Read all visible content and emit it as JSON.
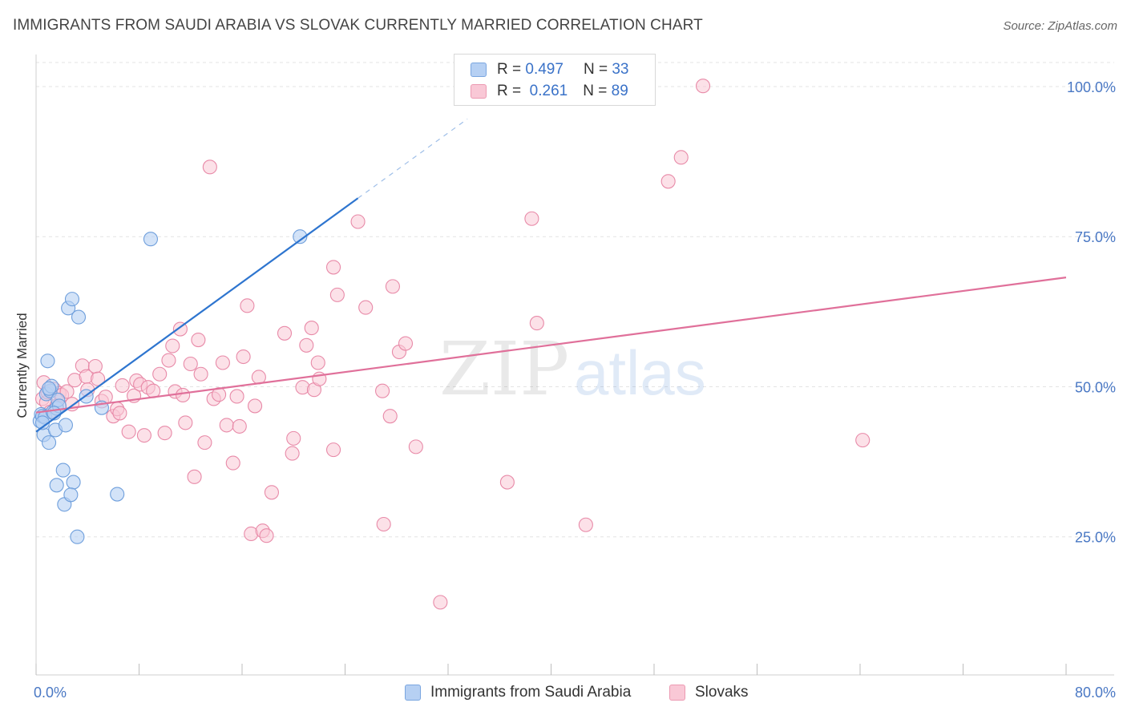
{
  "title": "IMMIGRANTS FROM SAUDI ARABIA VS SLOVAK CURRENTLY MARRIED CORRELATION CHART",
  "source": "Source: ZipAtlas.com",
  "watermark": {
    "zip": "ZIP",
    "atlas": "atlas"
  },
  "legend": {
    "blue": {
      "r_label": "R =",
      "r_value": "0.497",
      "n_label": "N =",
      "n_value": "33"
    },
    "pink": {
      "r_label": "R =",
      "r_value": "0.261",
      "n_label": "N =",
      "n_value": "89"
    }
  },
  "bottom_legend": {
    "blue": "Immigrants from Saudi Arabia",
    "pink": "Slovaks"
  },
  "colors": {
    "blue_fill": "#b6d0f3",
    "blue_stroke": "#6f9fdc",
    "blue_line": "#2e75cf",
    "pink_fill": "#f9c8d6",
    "pink_stroke": "#e88aa8",
    "pink_line": "#e0709a",
    "tick_text": "#4a78c4",
    "grid": "#e3e3e3"
  },
  "chart_data": {
    "type": "scatter",
    "title": "IMMIGRANTS FROM SAUDI ARABIA VS SLOVAK CURRENTLY MARRIED CORRELATION CHART",
    "xlabel": "",
    "ylabel": "Currently Married",
    "xlim": [
      0,
      80
    ],
    "ylim": [
      2,
      104
    ],
    "x_tick_labels": [
      "0.0%",
      "80.0%"
    ],
    "y_ticks": [
      25,
      50,
      75,
      100
    ],
    "y_tick_labels": [
      "25.0%",
      "50.0%",
      "75.0%",
      "100.0%"
    ],
    "series": [
      {
        "name": "Immigrants from Saudi Arabia",
        "color": "blue",
        "trend": {
          "x0": 0,
          "y0": 42.5,
          "x1": 25,
          "y1": 81.4,
          "dashed_to_x": 33.5,
          "dashed_to_y": 94.6
        },
        "points": [
          [
            0.3,
            44.3
          ],
          [
            0.4,
            45.4
          ],
          [
            0.5,
            45.1
          ],
          [
            0.6,
            42.0
          ],
          [
            0.7,
            44.9
          ],
          [
            0.8,
            48.8
          ],
          [
            0.9,
            54.3
          ],
          [
            1.0,
            40.7
          ],
          [
            1.1,
            49.3
          ],
          [
            1.2,
            50.1
          ],
          [
            1.3,
            45.8
          ],
          [
            1.5,
            42.8
          ],
          [
            1.6,
            46.4
          ],
          [
            1.7,
            47.8
          ],
          [
            1.8,
            46.8
          ],
          [
            2.1,
            36.1
          ],
          [
            2.2,
            30.4
          ],
          [
            2.3,
            43.6
          ],
          [
            2.5,
            63.1
          ],
          [
            2.8,
            64.6
          ],
          [
            2.9,
            34.1
          ],
          [
            2.7,
            32.0
          ],
          [
            3.3,
            61.6
          ],
          [
            1.6,
            33.6
          ],
          [
            3.9,
            48.4
          ],
          [
            5.1,
            46.5
          ],
          [
            6.3,
            32.1
          ],
          [
            8.9,
            74.6
          ],
          [
            20.5,
            75.0
          ],
          [
            3.2,
            25.0
          ],
          [
            0.5,
            44.0
          ],
          [
            1.0,
            49.7
          ],
          [
            1.4,
            45.6
          ]
        ]
      },
      {
        "name": "Slovaks",
        "color": "pink",
        "trend": {
          "x0": 0,
          "y0": 45.7,
          "x1": 80,
          "y1": 68.2
        },
        "points": [
          [
            0.5,
            48.0
          ],
          [
            0.6,
            50.7
          ],
          [
            0.8,
            47.4
          ],
          [
            0.9,
            49.1
          ],
          [
            1.1,
            45.8
          ],
          [
            1.4,
            49.6
          ],
          [
            1.6,
            46.8
          ],
          [
            1.8,
            48.9
          ],
          [
            2.0,
            48.6
          ],
          [
            2.4,
            49.2
          ],
          [
            2.8,
            47.1
          ],
          [
            3.0,
            51.1
          ],
          [
            3.6,
            53.5
          ],
          [
            3.9,
            51.7
          ],
          [
            4.0,
            49.5
          ],
          [
            4.6,
            53.4
          ],
          [
            4.8,
            51.3
          ],
          [
            5.1,
            47.6
          ],
          [
            5.4,
            48.3
          ],
          [
            6.0,
            45.1
          ],
          [
            6.3,
            46.3
          ],
          [
            6.5,
            45.6
          ],
          [
            6.7,
            50.2
          ],
          [
            7.2,
            42.5
          ],
          [
            7.6,
            48.5
          ],
          [
            7.8,
            51.0
          ],
          [
            8.1,
            50.4
          ],
          [
            8.4,
            41.9
          ],
          [
            8.7,
            49.9
          ],
          [
            9.1,
            49.3
          ],
          [
            9.6,
            52.1
          ],
          [
            10.0,
            42.3
          ],
          [
            10.3,
            54.4
          ],
          [
            10.6,
            56.8
          ],
          [
            10.8,
            49.2
          ],
          [
            11.2,
            59.6
          ],
          [
            11.4,
            48.6
          ],
          [
            11.6,
            44.0
          ],
          [
            12.0,
            53.8
          ],
          [
            12.3,
            35.0
          ],
          [
            12.6,
            57.8
          ],
          [
            12.8,
            52.1
          ],
          [
            13.1,
            40.7
          ],
          [
            13.5,
            86.6
          ],
          [
            13.8,
            48.0
          ],
          [
            14.2,
            48.7
          ],
          [
            14.5,
            54.0
          ],
          [
            14.8,
            43.6
          ],
          [
            15.3,
            37.3
          ],
          [
            15.6,
            48.4
          ],
          [
            15.8,
            43.4
          ],
          [
            16.1,
            55.0
          ],
          [
            16.4,
            63.5
          ],
          [
            16.7,
            25.5
          ],
          [
            17.0,
            46.8
          ],
          [
            17.3,
            51.6
          ],
          [
            17.6,
            26.0
          ],
          [
            17.9,
            25.2
          ],
          [
            18.3,
            32.4
          ],
          [
            19.3,
            58.9
          ],
          [
            20.0,
            41.4
          ],
          [
            19.9,
            38.9
          ],
          [
            20.7,
            49.9
          ],
          [
            21.0,
            56.9
          ],
          [
            21.4,
            59.8
          ],
          [
            21.6,
            49.5
          ],
          [
            21.9,
            54.0
          ],
          [
            22.0,
            51.3
          ],
          [
            23.1,
            69.9
          ],
          [
            23.1,
            39.5
          ],
          [
            23.4,
            65.3
          ],
          [
            25.0,
            77.5
          ],
          [
            25.6,
            63.2
          ],
          [
            26.9,
            49.3
          ],
          [
            27.0,
            27.1
          ],
          [
            27.5,
            45.1
          ],
          [
            27.7,
            66.7
          ],
          [
            28.2,
            55.8
          ],
          [
            28.7,
            57.2
          ],
          [
            29.5,
            40.0
          ],
          [
            31.4,
            14.1
          ],
          [
            36.6,
            34.1
          ],
          [
            38.5,
            78.0
          ],
          [
            38.9,
            60.6
          ],
          [
            42.7,
            27.0
          ],
          [
            49.1,
            84.2
          ],
          [
            50.1,
            88.2
          ],
          [
            51.8,
            100.1
          ],
          [
            64.2,
            41.1
          ]
        ]
      }
    ]
  }
}
